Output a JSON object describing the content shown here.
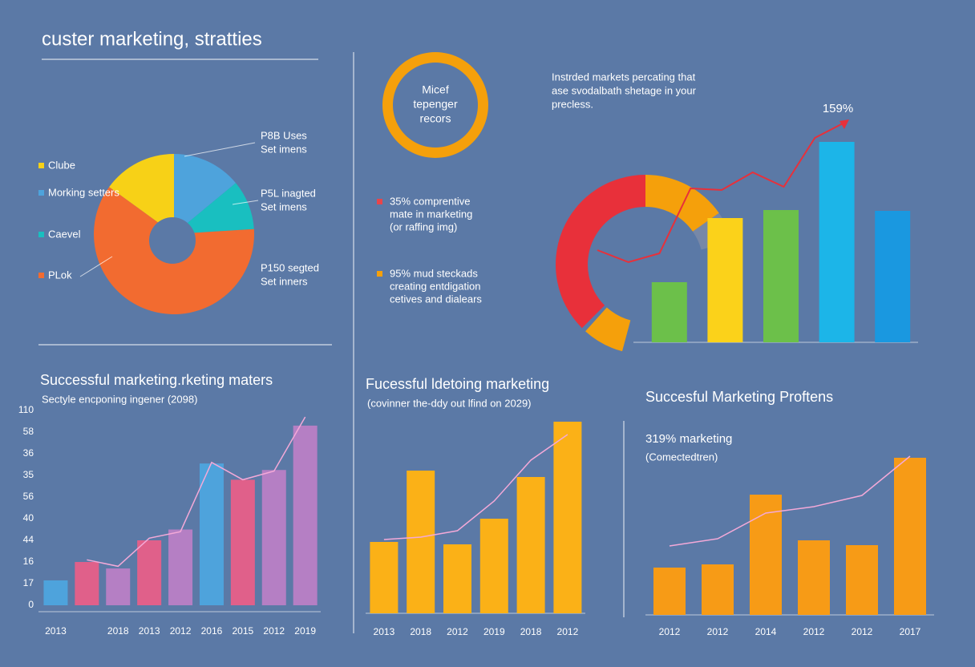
{
  "title": "custer marketing, stratties",
  "ring": {
    "color": "#f5a00b",
    "lines": [
      "Micef",
      "tepenger",
      "recors"
    ]
  },
  "intro": {
    "lines": [
      "Instrded markets percating that",
      "ase svodalbath shetage in your",
      "precless."
    ]
  },
  "notes": [
    {
      "color": "#e8454a",
      "lines": [
        "35% comprentive",
        "mate in marketing",
        "(or raffing img)"
      ]
    },
    {
      "color": "#f5a00b",
      "lines": [
        "95% mud steckads",
        "creating entdigation",
        "cetives and dialears"
      ]
    }
  ],
  "chart_data": [
    {
      "type": "pie",
      "categories": [
        "Clube",
        "Morking setters",
        "Caevel",
        "PLok"
      ],
      "values": [
        15,
        14,
        10,
        61
      ],
      "colors": [
        "#f7d117",
        "#4ea3dc",
        "#19bfc0",
        "#f26b30"
      ],
      "callouts": [
        {
          "lines": [
            "P8B Uses",
            "Set imens"
          ]
        },
        {
          "lines": [
            "P5L inagted",
            "Set imens"
          ]
        },
        {
          "lines": [
            "P150 segted",
            "Set inners"
          ]
        }
      ]
    },
    {
      "type": "bar",
      "annotation": "159%",
      "values": [
        75,
        155,
        165,
        250,
        164
      ],
      "colors": [
        "#6cc04a",
        "#fbd21a",
        "#6cc04a",
        "#1cb5e8",
        "#1a98e0"
      ],
      "ylim": [
        0,
        280
      ],
      "line": {
        "color": "#e8303a",
        "values": [
          115,
          100,
          111,
          192,
          190,
          212,
          194,
          255,
          275
        ]
      }
    },
    {
      "type": "bar",
      "title": "Successful marketing.rketing maters",
      "subtitle": "Sectyle encponing ingener (2098)",
      "categories": [
        "2013",
        null,
        "2018",
        "2013",
        "2012",
        "2016",
        "2015",
        "2012",
        "2019"
      ],
      "values": [
        11.5,
        20,
        17,
        30,
        35,
        65.5,
        58,
        62.5,
        83
      ],
      "colors": [
        "#4ea3dc",
        "#e0608a",
        "#b57fc4",
        "#e0608a",
        "#b57fc4",
        "#4ea3dc",
        "#e0608a",
        "#b57fc4",
        "#b57fc4"
      ],
      "ylim": [
        0,
        90
      ],
      "yticks": [
        0,
        {
          "value": 10,
          "label": "17"
        },
        {
          "value": 20,
          "label": "16"
        },
        {
          "value": 30,
          "label": "44"
        },
        40,
        {
          "value": 50,
          "label": "56"
        },
        {
          "value": 60,
          "label": "35"
        },
        {
          "value": 70,
          "label": "36"
        },
        {
          "value": 80,
          "label": "58"
        },
        {
          "value": 90,
          "label": "110"
        }
      ],
      "line": {
        "color": "#f4a9d8",
        "values": [
          null,
          21,
          18,
          31,
          34,
          66,
          58,
          62,
          87
        ]
      }
    },
    {
      "type": "bar",
      "title": "Fucessful ldetoing marketing",
      "subtitle": "(covinner the-ddy out lfind on 2029)",
      "categories": [
        "2013",
        "2018",
        "2012",
        "2019",
        "2018",
        "2012"
      ],
      "values": [
        89,
        178,
        86,
        118,
        170,
        239
      ],
      "colors": [
        "#fbb117",
        "#fbb117",
        "#fbb117",
        "#fbb117",
        "#fbb117",
        "#fbb117"
      ],
      "ylim": [
        0,
        250
      ],
      "line": {
        "color": "#f4a9d8",
        "values": [
          92,
          95,
          103,
          140,
          191,
          223
        ]
      }
    },
    {
      "type": "bar",
      "title": "Succesful Marketing Proftens",
      "subtitle": "319% marketing",
      "note": "(Comectedtren)",
      "categories": [
        "2012",
        "2012",
        "2014",
        "2012",
        "2012",
        "2017"
      ],
      "values": [
        59,
        63,
        150,
        93,
        87,
        196
      ],
      "colors": [
        "#f79b16",
        "#f79b16",
        "#f79b16",
        "#f79b16",
        "#f79b16",
        "#f79b16"
      ],
      "ylim": [
        0,
        210
      ],
      "line": {
        "color": "#f4a9d8",
        "values": [
          86,
          95,
          127,
          135,
          149,
          198
        ]
      }
    }
  ]
}
